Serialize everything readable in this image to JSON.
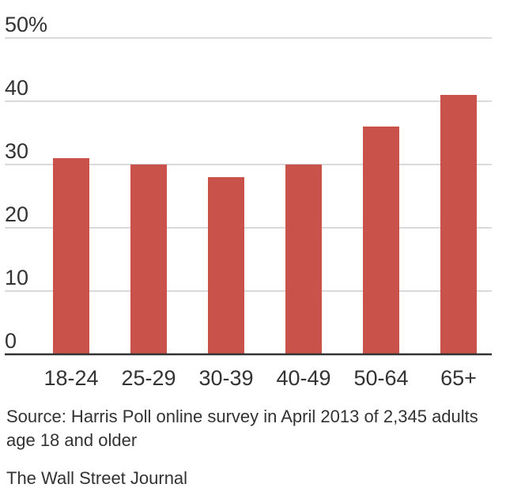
{
  "chart_data": {
    "type": "bar",
    "categories": [
      "18-24",
      "25-29",
      "30-39",
      "40-49",
      "50-64",
      "65+"
    ],
    "values": [
      31,
      30,
      28,
      30,
      36,
      41
    ],
    "y_ticks": [
      "0",
      "10",
      "20",
      "30",
      "40",
      "50%"
    ],
    "ylim": [
      0,
      50
    ],
    "grid": true,
    "bar_color": "#c9524a",
    "grid_color": "#d9d9d9",
    "axis_color": "#333333"
  },
  "notes": {
    "source": "Source: Harris Poll online survey in April 2013 of 2,345 adults age 18 and older",
    "publisher": "The Wall Street Journal"
  }
}
